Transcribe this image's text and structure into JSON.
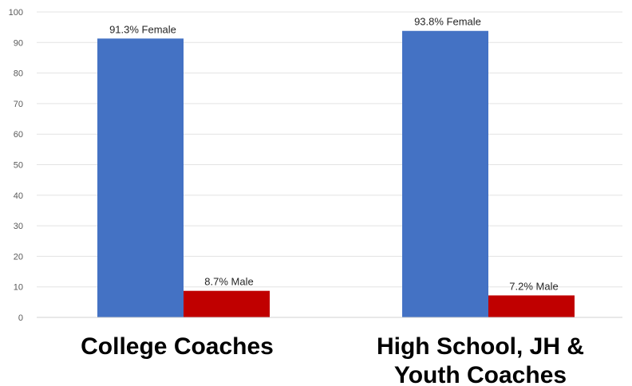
{
  "chart_data": {
    "type": "bar",
    "title": "",
    "xlabel": "",
    "ylabel": "",
    "ylim": [
      0,
      100
    ],
    "yticks": [
      0,
      10,
      20,
      30,
      40,
      50,
      60,
      70,
      80,
      90,
      100
    ],
    "grid": true,
    "legend": "none",
    "categories": [
      [
        "College Coaches"
      ],
      [
        "High School, JH &",
        "Youth Coaches"
      ]
    ],
    "series": [
      {
        "color": "#4472c4",
        "values": [
          91.3,
          93.8
        ],
        "labels": [
          "91.3% Female",
          "93.8% Female"
        ]
      },
      {
        "color": "#c00000",
        "values": [
          8.7,
          7.2
        ],
        "labels": [
          "8.7% Male",
          "7.2% Male"
        ]
      }
    ]
  }
}
